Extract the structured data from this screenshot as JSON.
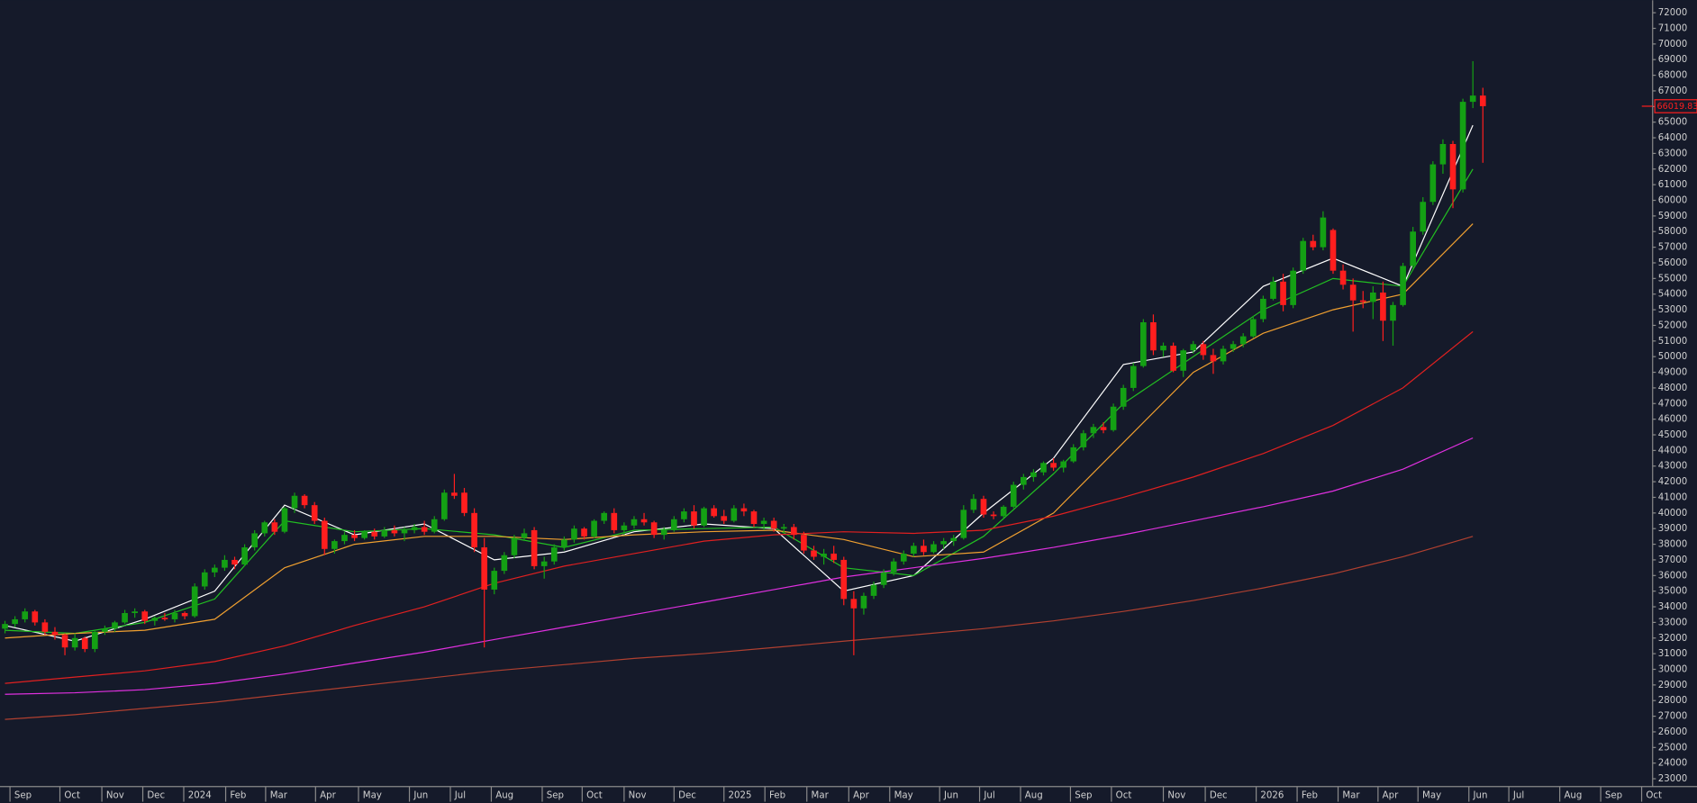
{
  "chart_data": {
    "type": "candlestick",
    "xlim": [
      -0.5,
      165
    ],
    "ylim": [
      22500,
      72800
    ],
    "yticks": [
      23000,
      24000,
      25000,
      26000,
      27000,
      28000,
      29000,
      30000,
      31000,
      32000,
      33000,
      34000,
      35000,
      36000,
      37000,
      38000,
      39000,
      40000,
      41000,
      42000,
      43000,
      44000,
      45000,
      46000,
      47000,
      48000,
      49000,
      50000,
      51000,
      52000,
      53000,
      54000,
      55000,
      56000,
      57000,
      58000,
      59000,
      60000,
      61000,
      62000,
      63000,
      64000,
      65000,
      66000,
      67000,
      68000,
      69000,
      70000,
      71000,
      72000
    ],
    "xticks": [
      {
        "value": 0.5,
        "label": "Sep"
      },
      {
        "value": 5.5,
        "label": "Oct"
      },
      {
        "value": 9.7,
        "label": "Nov"
      },
      {
        "value": 13.8,
        "label": "Dec"
      },
      {
        "value": 17.9,
        "label": "2024"
      },
      {
        "value": 22.1,
        "label": "Feb"
      },
      {
        "value": 26.1,
        "label": "Mar"
      },
      {
        "value": 31.1,
        "label": "Apr"
      },
      {
        "value": 35.4,
        "label": "May"
      },
      {
        "value": 40.5,
        "label": "Jun"
      },
      {
        "value": 44.6,
        "label": "Jul"
      },
      {
        "value": 48.7,
        "label": "Aug"
      },
      {
        "value": 53.8,
        "label": "Sep"
      },
      {
        "value": 57.8,
        "label": "Oct"
      },
      {
        "value": 62,
        "label": "Nov"
      },
      {
        "value": 67,
        "label": "Dec"
      },
      {
        "value": 72,
        "label": "2025"
      },
      {
        "value": 76.1,
        "label": "Feb"
      },
      {
        "value": 80.3,
        "label": "Mar"
      },
      {
        "value": 84.5,
        "label": "Apr"
      },
      {
        "value": 88.6,
        "label": "May"
      },
      {
        "value": 93.6,
        "label": "Jun"
      },
      {
        "value": 97.6,
        "label": "Jul"
      },
      {
        "value": 101.7,
        "label": "Aug"
      },
      {
        "value": 106.7,
        "label": "Sep"
      },
      {
        "value": 110.8,
        "label": "Oct"
      },
      {
        "value": 116,
        "label": "Nov"
      },
      {
        "value": 120.2,
        "label": "Dec"
      },
      {
        "value": 125.3,
        "label": "2026"
      },
      {
        "value": 129.4,
        "label": "Feb"
      },
      {
        "value": 133.5,
        "label": "Mar"
      },
      {
        "value": 137.5,
        "label": "Apr"
      },
      {
        "value": 141.5,
        "label": "May"
      },
      {
        "value": 146.6,
        "label": "Jun"
      },
      {
        "value": 150.6,
        "label": "Jul"
      },
      {
        "value": 155.7,
        "label": "Aug"
      },
      {
        "value": 159.8,
        "label": "Sep"
      },
      {
        "value": 163.9,
        "label": "Oct"
      }
    ],
    "up_color": "#14a014",
    "down_color": "#ff1e1e",
    "ohlc": [
      [
        32600,
        33100,
        32300,
        32900
      ],
      [
        32900,
        33400,
        32700,
        33200
      ],
      [
        33200,
        33900,
        33000,
        33700
      ],
      [
        33700,
        33800,
        32800,
        33000
      ],
      [
        33000,
        33200,
        32200,
        32400
      ],
      [
        32400,
        32700,
        31900,
        32200
      ],
      [
        32200,
        32300,
        30900,
        31400
      ],
      [
        31400,
        32300,
        31200,
        32000
      ],
      [
        32000,
        32100,
        31100,
        31300
      ],
      [
        31300,
        32500,
        31100,
        32400
      ],
      [
        32400,
        32800,
        32200,
        32600
      ],
      [
        32600,
        33100,
        32400,
        33000
      ],
      [
        33000,
        33800,
        32900,
        33600
      ],
      [
        33600,
        33900,
        33300,
        33700
      ],
      [
        33700,
        33800,
        32900,
        33100
      ],
      [
        33100,
        33400,
        32800,
        33300
      ],
      [
        33300,
        33600,
        33100,
        33200
      ],
      [
        33200,
        33800,
        33000,
        33600
      ],
      [
        33600,
        33700,
        33200,
        33400
      ],
      [
        33400,
        35500,
        33300,
        35300
      ],
      [
        35300,
        36400,
        35100,
        36200
      ],
      [
        36200,
        36700,
        35900,
        36500
      ],
      [
        36500,
        37300,
        36300,
        37000
      ],
      [
        37000,
        37200,
        36400,
        36700
      ],
      [
        36700,
        38000,
        36600,
        37800
      ],
      [
        37800,
        38900,
        37600,
        38700
      ],
      [
        38700,
        39500,
        38500,
        39400
      ],
      [
        39400,
        39600,
        38600,
        38800
      ],
      [
        38800,
        40400,
        38700,
        40300
      ],
      [
        40300,
        41300,
        40000,
        41100
      ],
      [
        41100,
        41200,
        40300,
        40500
      ],
      [
        40500,
        40700,
        39300,
        39500
      ],
      [
        39500,
        39700,
        37300,
        37700
      ],
      [
        37700,
        38300,
        37400,
        38200
      ],
      [
        38200,
        38800,
        38000,
        38600
      ],
      [
        38600,
        38900,
        38200,
        38400
      ],
      [
        38400,
        38900,
        38300,
        38800
      ],
      [
        38800,
        39000,
        38300,
        38500
      ],
      [
        38500,
        39100,
        38400,
        38900
      ],
      [
        38900,
        39200,
        38500,
        38700
      ],
      [
        38700,
        39100,
        38200,
        38900
      ],
      [
        38900,
        39300,
        38700,
        39100
      ],
      [
        39100,
        39500,
        38600,
        38800
      ],
      [
        38800,
        39800,
        38700,
        39600
      ],
      [
        39600,
        41500,
        39500,
        41300
      ],
      [
        41300,
        42500,
        40900,
        41100
      ],
      [
        41300,
        41600,
        39800,
        40000
      ],
      [
        40000,
        40300,
        37500,
        37800
      ],
      [
        37800,
        38400,
        31400,
        35100
      ],
      [
        35100,
        36500,
        34800,
        36300
      ],
      [
        36300,
        37500,
        36100,
        37300
      ],
      [
        37300,
        38600,
        37100,
        38400
      ],
      [
        38400,
        39000,
        38200,
        38700
      ],
      [
        38900,
        39100,
        36400,
        36600
      ],
      [
        36600,
        37200,
        35800,
        36900
      ],
      [
        36900,
        38000,
        36700,
        37800
      ],
      [
        37800,
        38500,
        37600,
        38300
      ],
      [
        38300,
        39200,
        38100,
        39000
      ],
      [
        39000,
        39100,
        38300,
        38500
      ],
      [
        38500,
        39600,
        38400,
        39500
      ],
      [
        39500,
        40100,
        39300,
        40000
      ],
      [
        40000,
        40300,
        38700,
        38900
      ],
      [
        38900,
        39400,
        38600,
        39200
      ],
      [
        39200,
        39800,
        39000,
        39600
      ],
      [
        39600,
        40000,
        39200,
        39400
      ],
      [
        39400,
        39500,
        38400,
        38600
      ],
      [
        38600,
        39100,
        38300,
        38900
      ],
      [
        38900,
        39800,
        38800,
        39600
      ],
      [
        39600,
        40300,
        39400,
        40100
      ],
      [
        40100,
        40500,
        39000,
        39200
      ],
      [
        39200,
        40400,
        39100,
        40300
      ],
      [
        40300,
        40500,
        39700,
        39800
      ],
      [
        39800,
        40200,
        39300,
        39500
      ],
      [
        39500,
        40500,
        39400,
        40300
      ],
      [
        40300,
        40600,
        39800,
        40100
      ],
      [
        40100,
        40200,
        39100,
        39300
      ],
      [
        39300,
        39700,
        38900,
        39500
      ],
      [
        39500,
        39700,
        38800,
        39000
      ],
      [
        39000,
        39300,
        38700,
        39100
      ],
      [
        39100,
        39300,
        38300,
        38600
      ],
      [
        38600,
        38800,
        37400,
        37600
      ],
      [
        37600,
        37900,
        37000,
        37200
      ],
      [
        37200,
        37700,
        36700,
        37400
      ],
      [
        37400,
        37900,
        36800,
        37000
      ],
      [
        37000,
        37200,
        34100,
        34500
      ],
      [
        34500,
        35000,
        30900,
        33900
      ],
      [
        33900,
        34900,
        33500,
        34700
      ],
      [
        34700,
        35600,
        34500,
        35400
      ],
      [
        35400,
        36400,
        35200,
        36200
      ],
      [
        36200,
        37100,
        36000,
        36900
      ],
      [
        36900,
        37600,
        36700,
        37400
      ],
      [
        37400,
        38100,
        37200,
        37900
      ],
      [
        37900,
        38300,
        37300,
        37500
      ],
      [
        37500,
        38200,
        37400,
        38000
      ],
      [
        38000,
        38400,
        37700,
        38200
      ],
      [
        38200,
        38600,
        37900,
        38400
      ],
      [
        38400,
        40500,
        38300,
        40200
      ],
      [
        40200,
        41200,
        40000,
        40900
      ],
      [
        40900,
        41100,
        39700,
        39900
      ],
      [
        39900,
        40100,
        39600,
        39800
      ],
      [
        39800,
        40500,
        39700,
        40400
      ],
      [
        40400,
        42000,
        40300,
        41800
      ],
      [
        41800,
        42500,
        41500,
        42300
      ],
      [
        42300,
        42800,
        42000,
        42600
      ],
      [
        42600,
        43300,
        42400,
        43200
      ],
      [
        43200,
        43500,
        42700,
        42900
      ],
      [
        42900,
        43400,
        42600,
        43300
      ],
      [
        43300,
        44400,
        43200,
        44200
      ],
      [
        44200,
        45300,
        44000,
        45100
      ],
      [
        45100,
        45700,
        44800,
        45500
      ],
      [
        45500,
        45800,
        45100,
        45300
      ],
      [
        45300,
        47000,
        45200,
        46800
      ],
      [
        46800,
        48200,
        46600,
        48000
      ],
      [
        48000,
        49600,
        47800,
        49400
      ],
      [
        49400,
        52400,
        49300,
        52200
      ],
      [
        52200,
        52700,
        50100,
        50400
      ],
      [
        50400,
        50900,
        50000,
        50700
      ],
      [
        50700,
        50900,
        49000,
        49100
      ],
      [
        49100,
        50500,
        48700,
        50400
      ],
      [
        50400,
        51000,
        50200,
        50800
      ],
      [
        50800,
        51000,
        49800,
        50100
      ],
      [
        50100,
        50500,
        48900,
        49700
      ],
      [
        49700,
        50700,
        49500,
        50500
      ],
      [
        50500,
        51000,
        50300,
        50800
      ],
      [
        50800,
        51500,
        50600,
        51300
      ],
      [
        51300,
        52600,
        51200,
        52400
      ],
      [
        52400,
        53900,
        52200,
        53700
      ],
      [
        53700,
        55100,
        53600,
        54800
      ],
      [
        54800,
        55300,
        52900,
        53300
      ],
      [
        53300,
        55700,
        53100,
        55500
      ],
      [
        55500,
        57600,
        55300,
        57400
      ],
      [
        57400,
        57800,
        56800,
        57000
      ],
      [
        57000,
        59300,
        56800,
        58900
      ],
      [
        58100,
        58200,
        55300,
        55500
      ],
      [
        55500,
        55900,
        54300,
        54600
      ],
      [
        54600,
        55000,
        51600,
        53600
      ],
      [
        53600,
        54200,
        53100,
        53500
      ],
      [
        53500,
        54500,
        52400,
        54100
      ],
      [
        54100,
        54800,
        51000,
        52300
      ],
      [
        52300,
        53500,
        50700,
        53300
      ],
      [
        53300,
        56000,
        53200,
        55800
      ],
      [
        55800,
        58300,
        55600,
        58000
      ],
      [
        58000,
        60200,
        57800,
        59900
      ],
      [
        59900,
        62500,
        59700,
        62300
      ],
      [
        62300,
        63900,
        61700,
        63600
      ],
      [
        63600,
        63800,
        59500,
        60700
      ],
      [
        60700,
        66500,
        60500,
        66300
      ],
      [
        66300,
        68900,
        65900,
        66700
      ],
      [
        66700,
        67200,
        62400,
        66019.83
      ]
    ],
    "x": [
      0,
      7,
      14,
      21,
      28,
      35,
      42,
      49,
      56,
      63,
      70,
      77,
      84,
      91,
      98,
      105,
      112,
      119,
      126,
      133,
      140,
      147
    ],
    "series": [
      {
        "color": "#ffffff",
        "values": [
          32800,
          31800,
          33200,
          35000,
          40500,
          38600,
          39300,
          37000,
          37500,
          38800,
          39300,
          39000,
          35000,
          36000,
          40000,
          43500,
          49500,
          50300,
          54500,
          56300,
          54500,
          64800
        ]
      },
      {
        "color": "#22c022",
        "values": [
          32500,
          32300,
          33000,
          34500,
          39500,
          38800,
          39000,
          38600,
          37800,
          38900,
          39000,
          39100,
          36500,
          36000,
          38500,
          42500,
          47000,
          50000,
          53000,
          55000,
          54500,
          62000
        ]
      },
      {
        "color": "#f0a030",
        "values": [
          32000,
          32300,
          32500,
          33200,
          36500,
          38000,
          38500,
          38500,
          38300,
          38600,
          38800,
          38900,
          38300,
          37200,
          37500,
          40000,
          44500,
          49000,
          51500,
          53000,
          54000,
          58500
        ]
      },
      {
        "color": "#e02020",
        "values": [
          29100,
          29500,
          29900,
          30500,
          31500,
          32800,
          34000,
          35500,
          36600,
          37400,
          38200,
          38600,
          38800,
          38700,
          38900,
          39800,
          41000,
          42300,
          43800,
          45600,
          48000,
          51600
        ]
      },
      {
        "color": "#e030e0",
        "values": [
          28400,
          28500,
          28700,
          29100,
          29700,
          30400,
          31100,
          31900,
          32700,
          33500,
          34300,
          35100,
          35900,
          36500,
          37100,
          37800,
          38600,
          39500,
          40400,
          41400,
          42800,
          44800
        ]
      },
      {
        "color": "#b04030",
        "values": [
          26800,
          27100,
          27500,
          27900,
          28400,
          28900,
          29400,
          29900,
          30300,
          30700,
          31000,
          31400,
          31800,
          32200,
          32600,
          33100,
          33700,
          34400,
          35200,
          36100,
          37200,
          38500
        ]
      }
    ]
  }
}
